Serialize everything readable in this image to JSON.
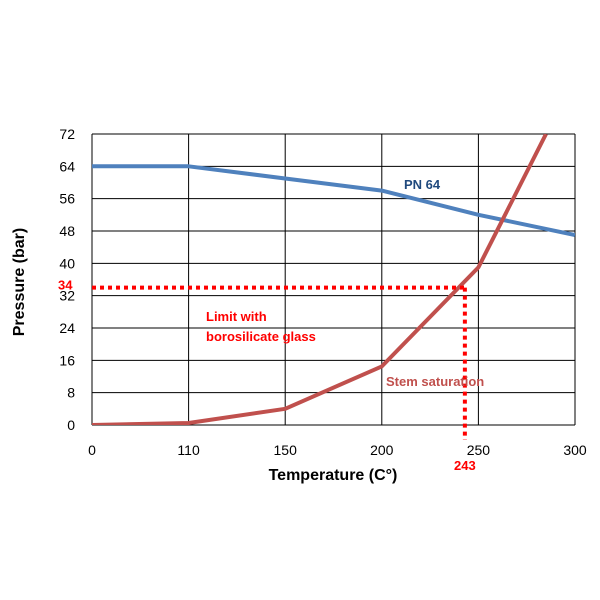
{
  "chart_data": {
    "type": "line",
    "xlabel": "Temperature (C°)",
    "ylabel": "Pressure (bar)",
    "xlim": [
      0,
      300
    ],
    "ylim": [
      0,
      72
    ],
    "x_ticks": [
      0,
      110,
      150,
      200,
      250,
      300
    ],
    "y_ticks": [
      0,
      8,
      16,
      24,
      32,
      40,
      48,
      56,
      64,
      72
    ],
    "grid": true,
    "series": [
      {
        "name": "PN 64",
        "color": "#4f81bd",
        "points": [
          [
            0,
            64
          ],
          [
            110,
            64
          ],
          [
            150,
            61
          ],
          [
            200,
            58
          ],
          [
            250,
            52
          ],
          [
            300,
            47
          ]
        ]
      },
      {
        "name": "Stem saturation",
        "color": "#c0504d",
        "points": [
          [
            0,
            0
          ],
          [
            110,
            0.5
          ],
          [
            150,
            4
          ],
          [
            200,
            14.5
          ],
          [
            250,
            39
          ],
          [
            285,
            72
          ]
        ]
      }
    ],
    "reference_lines": {
      "color": "#ff0000",
      "x_value": 243,
      "y_value": 34,
      "x_label": "243",
      "y_label": "34"
    },
    "annotations": [
      {
        "text": "Limit with",
        "color": "#ff0000"
      },
      {
        "text": "borosilicate glass",
        "color": "#ff0000"
      }
    ]
  }
}
